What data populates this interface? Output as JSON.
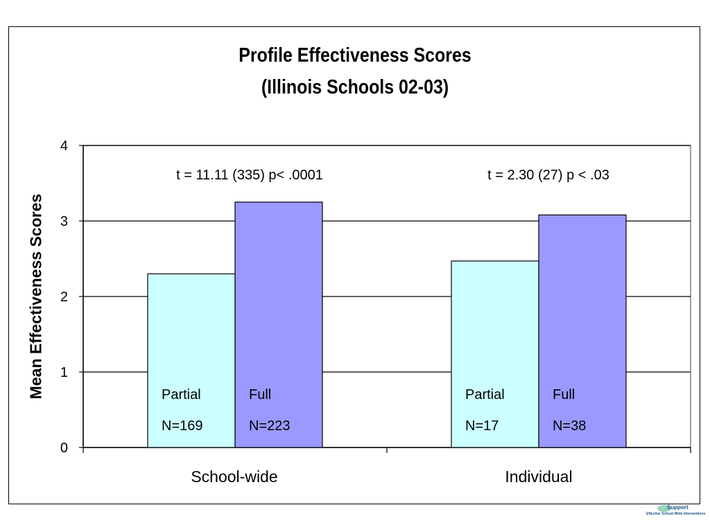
{
  "chart_data": {
    "type": "bar",
    "title": "Profile Effectiveness Scores",
    "subtitle": "(Illinois Schools 02-03)",
    "xlabel": "",
    "ylabel": "Mean Effectiveness Scores",
    "ylim": [
      0,
      4
    ],
    "yticks": [
      "0",
      "1",
      "2",
      "3",
      "4"
    ],
    "grid": true,
    "categories": [
      "School-wide",
      "Individual"
    ],
    "series": [
      {
        "name": "Partial",
        "values": [
          2.3,
          2.47
        ],
        "n_labels": [
          "N=169",
          "N=17"
        ],
        "color": "#ccffff"
      },
      {
        "name": "Full",
        "values": [
          3.25,
          3.08
        ],
        "n_labels": [
          "N=223",
          "N=38"
        ],
        "color": "#9999ff"
      }
    ],
    "annotations": [
      "t = 11.11 (335)  p< .0001",
      "t = 2.30 (27)  p < .03"
    ]
  },
  "logo": {
    "line1": "Support",
    "line2": "Effective School-Wide Interventions"
  }
}
